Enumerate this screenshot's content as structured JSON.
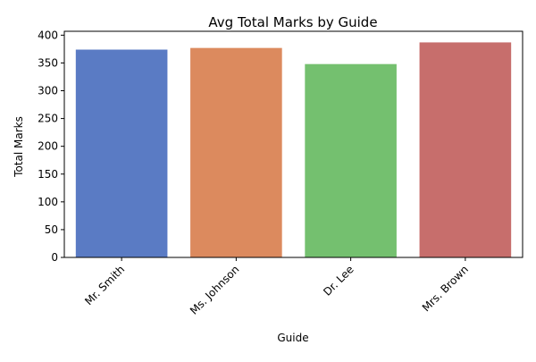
{
  "chart_data": {
    "type": "bar",
    "title": "Avg Total Marks by Guide",
    "xlabel": "Guide",
    "ylabel": "Total Marks",
    "categories": [
      "Mr. Smith",
      "Ms. Johnson",
      "Dr. Lee",
      "Mrs. Brown"
    ],
    "values": [
      374,
      377,
      348,
      387
    ],
    "colors": [
      "#5A7BC4",
      "#DC8A5E",
      "#74C06F",
      "#C76E6C"
    ],
    "ylim": [
      0,
      407
    ],
    "yticks": [
      0,
      50,
      100,
      150,
      200,
      250,
      300,
      350,
      400
    ],
    "ytick_labels": [
      "0",
      "50",
      "100",
      "150",
      "200",
      "250",
      "300",
      "350",
      "400"
    ],
    "xtick_rotation_deg": 45,
    "grid": false,
    "legend": "none"
  }
}
